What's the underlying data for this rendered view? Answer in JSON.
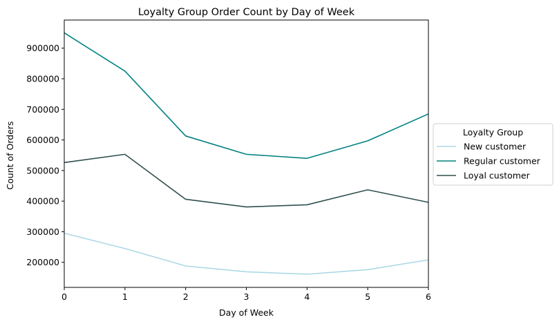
{
  "chart_data": {
    "type": "line",
    "title": "Loyalty Group Order Count by Day of Week",
    "xlabel": "Day of Week",
    "ylabel": "Count of Orders",
    "x": [
      0,
      1,
      2,
      3,
      4,
      5,
      6
    ],
    "xlim": [
      0,
      6
    ],
    "ylim": [
      118000,
      992000
    ],
    "yticks": [
      200000,
      300000,
      400000,
      500000,
      600000,
      700000,
      800000,
      900000
    ],
    "grid": false,
    "legend": {
      "title": "Loyalty Group",
      "placement": "center-right, outside plot"
    },
    "series": [
      {
        "name": "New customer",
        "color": "#add8e6",
        "values": [
          295000,
          245000,
          188000,
          169000,
          161000,
          176000,
          208000
        ]
      },
      {
        "name": "Regular customer",
        "color": "#008080",
        "values": [
          950000,
          825000,
          613000,
          553000,
          540000,
          597000,
          685000
        ]
      },
      {
        "name": "Loyal customer",
        "color": "#2f4f4f",
        "values": [
          526000,
          553000,
          406000,
          381000,
          388000,
          437000,
          396000
        ]
      }
    ]
  }
}
